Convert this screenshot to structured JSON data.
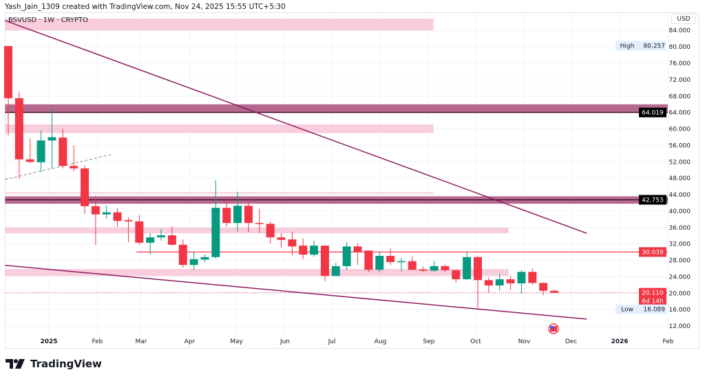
{
  "header": {
    "credit": "Yash_Jain_1309 created with TradingView.com, Nov 24, 2025 15:55 UTC+5:30",
    "symbol": "BSVUSD · 1W · CRYPTO",
    "currency": "USD"
  },
  "footer": {
    "logo_text": "TradingView"
  },
  "colors": {
    "up": "#089981",
    "down": "#f23645",
    "band": "#b5698f",
    "band_line": "#4a0f2e",
    "zone": "#f8c8d8",
    "trendline": "#8b1a5c",
    "support": "#f23645"
  },
  "chart_data": {
    "type": "candlestick",
    "interval": "1W",
    "ylim": [
      10,
      86
    ],
    "xlim": [
      "2024-12-01",
      "2026-02-20"
    ],
    "grid": true,
    "y_ticks": [
      12,
      16,
      20,
      24,
      28,
      32,
      36,
      40,
      44,
      48,
      52,
      56,
      60,
      64,
      68,
      72,
      76,
      80,
      84
    ],
    "x_ticks": [
      {
        "label": "2025",
        "date": "2025-01-01"
      },
      {
        "label": "Feb",
        "date": "2025-02-01"
      },
      {
        "label": "Mar",
        "date": "2025-03-01"
      },
      {
        "label": "Apr",
        "date": "2025-04-01"
      },
      {
        "label": "May",
        "date": "2025-05-01"
      },
      {
        "label": "Jun",
        "date": "2025-06-01"
      },
      {
        "label": "Jul",
        "date": "2025-07-01"
      },
      {
        "label": "Aug",
        "date": "2025-08-01"
      },
      {
        "label": "Sep",
        "date": "2025-09-01"
      },
      {
        "label": "Oct",
        "date": "2025-10-01"
      },
      {
        "label": "Nov",
        "date": "2025-11-01"
      },
      {
        "label": "Dec",
        "date": "2025-12-01"
      },
      {
        "label": "2026",
        "date": "2026-01-01"
      },
      {
        "label": "Feb",
        "date": "2026-02-01"
      }
    ],
    "first_candle": "2024-12-09",
    "candles": [
      [
        80.2,
        80.257,
        58.4,
        67.5
      ],
      [
        67.5,
        69.1,
        47.9,
        52.6
      ],
      [
        52.6,
        57.7,
        51.6,
        52.0
      ],
      [
        51.9,
        59.6,
        49.5,
        57.2
      ],
      [
        57.2,
        65.0,
        50.4,
        58.0
      ],
      [
        57.9,
        59.9,
        50.4,
        51.0
      ],
      [
        51.0,
        56.0,
        49.7,
        50.4
      ],
      [
        50.4,
        51.2,
        39.3,
        41.2
      ],
      [
        41.2,
        43.7,
        31.8,
        39.2
      ],
      [
        39.2,
        41.3,
        38.1,
        39.7
      ],
      [
        39.7,
        40.7,
        36.1,
        37.6
      ],
      [
        37.8,
        38.5,
        32.4,
        37.5
      ],
      [
        37.5,
        39.1,
        31.8,
        32.3
      ],
      [
        32.3,
        34.6,
        29.4,
        33.6
      ],
      [
        33.6,
        35.6,
        32.8,
        34.1
      ],
      [
        34.1,
        36.3,
        31.6,
        31.8
      ],
      [
        31.8,
        33.1,
        26.3,
        26.9
      ],
      [
        26.9,
        30.1,
        25.6,
        28.3
      ],
      [
        28.2,
        29.4,
        27.6,
        28.8
      ],
      [
        28.8,
        47.5,
        28.5,
        40.8
      ],
      [
        40.8,
        42.8,
        36.3,
        37.1
      ],
      [
        37.1,
        44.7,
        35.0,
        41.3
      ],
      [
        41.3,
        43.0,
        34.8,
        37.1
      ],
      [
        37.1,
        40.6,
        34.6,
        36.9
      ],
      [
        36.9,
        37.5,
        32.1,
        33.6
      ],
      [
        33.6,
        34.6,
        31.1,
        33.0
      ],
      [
        33.1,
        35.0,
        29.2,
        31.4
      ],
      [
        31.6,
        33.4,
        28.3,
        29.4
      ],
      [
        29.4,
        32.8,
        28.9,
        31.6
      ],
      [
        31.6,
        31.6,
        22.9,
        24.2
      ],
      [
        24.2,
        27.4,
        24.2,
        26.6
      ],
      [
        26.6,
        32.4,
        25.6,
        31.4
      ],
      [
        31.4,
        32.1,
        26.9,
        30.1
      ],
      [
        30.4,
        30.4,
        25.1,
        25.7
      ],
      [
        25.7,
        30.1,
        25.1,
        29.1
      ],
      [
        29.1,
        30.9,
        26.9,
        27.6
      ],
      [
        27.7,
        28.6,
        25.3,
        27.8
      ],
      [
        27.8,
        29.0,
        25.6,
        25.7
      ],
      [
        25.8,
        26.5,
        25.2,
        25.5
      ],
      [
        25.5,
        27.8,
        25.3,
        26.6
      ],
      [
        26.6,
        27.0,
        25.2,
        25.6
      ],
      [
        25.6,
        25.8,
        22.6,
        23.4
      ],
      [
        23.4,
        30.1,
        23.2,
        28.8
      ],
      [
        28.8,
        29.1,
        16.089,
        23.2
      ],
      [
        23.2,
        23.8,
        20.1,
        21.9
      ],
      [
        21.9,
        24.7,
        20.6,
        23.4
      ],
      [
        23.4,
        24.2,
        20.8,
        22.4
      ],
      [
        22.4,
        25.6,
        19.9,
        25.2
      ],
      [
        25.2,
        26.0,
        22.1,
        22.5
      ],
      [
        22.5,
        22.7,
        19.5,
        20.6
      ],
      [
        20.6,
        20.9,
        20.1,
        20.11
      ]
    ],
    "candle_fields": [
      "open",
      "high",
      "low",
      "close"
    ],
    "levels": [
      {
        "price": 64.019,
        "label": "64.019",
        "band": [
          64.0,
          66.0
        ],
        "from": "2024-12-04",
        "to": "end"
      },
      {
        "price": 42.753,
        "label": "42.753",
        "band": [
          41.8,
          43.6
        ],
        "from": "2024-12-04",
        "to": "end"
      },
      {
        "price": 30.039,
        "label": "30.039",
        "from": "2025-02-26",
        "to": "end"
      }
    ],
    "zones": [
      {
        "range": [
          84.0,
          86.9
        ],
        "from": "2024-12-04",
        "to": "2025-09-04"
      },
      {
        "range": [
          59.0,
          61.1
        ],
        "from": "2024-12-04",
        "to": "2025-09-04"
      },
      {
        "range": [
          44.3,
          44.6
        ],
        "from": "2024-12-04",
        "to": "2025-09-04"
      },
      {
        "range": [
          34.6,
          36.0
        ],
        "from": "2024-12-04",
        "to": "2025-10-22"
      },
      {
        "range": [
          24.2,
          25.9
        ],
        "from": "2024-12-04",
        "to": "2025-10-22"
      }
    ],
    "trendlines": [
      {
        "from": [
          "2024-12-04",
          86.4
        ],
        "to": [
          "2025-12-11",
          34.6
        ],
        "style": "solid"
      },
      {
        "from": [
          "2024-12-04",
          26.8
        ],
        "to": [
          "2025-12-11",
          13.7
        ],
        "style": "solid"
      },
      {
        "from": [
          "2024-12-04",
          47.7
        ],
        "to": [
          "2025-02-11",
          53.9
        ],
        "style": "dashed"
      }
    ],
    "current_price": {
      "label": "20.110",
      "countdown": "6d 14h",
      "value": 20.11
    },
    "high": {
      "label": "High",
      "value": "80.257"
    },
    "low": {
      "label": "Low",
      "value": "16.089"
    }
  }
}
